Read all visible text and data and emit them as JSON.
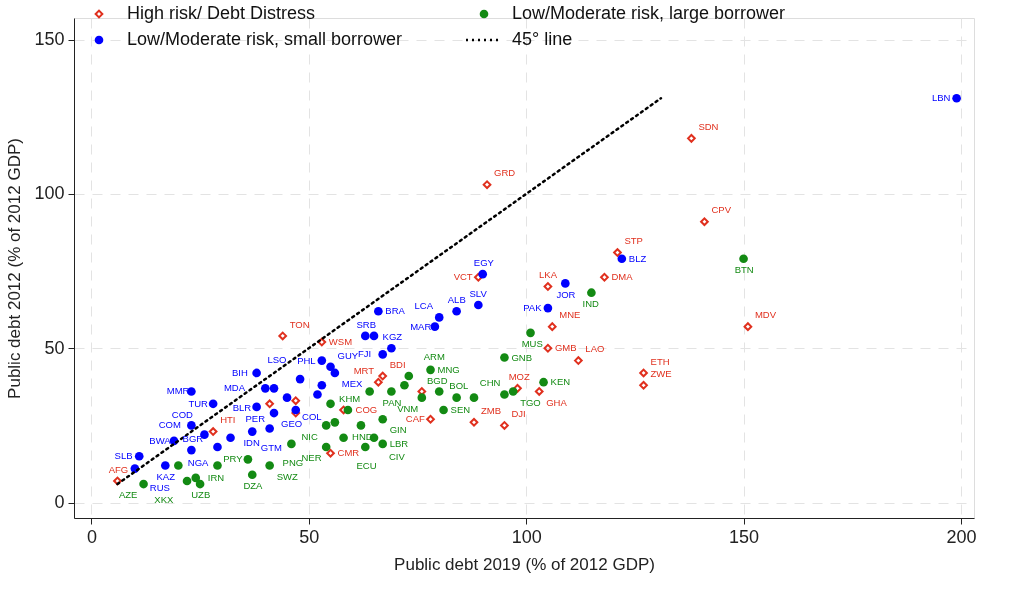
{
  "chart_data": {
    "type": "scatter",
    "xlabel": "Public debt 2019 (% of 2012 GDP)",
    "ylabel": "Public debt 2012 (% of 2012 GDP)",
    "xlim": [
      -4,
      203
    ],
    "ylim": [
      -5,
      157
    ],
    "xticks": [
      0,
      50,
      100,
      150,
      200
    ],
    "yticks": [
      0,
      50,
      100,
      150
    ],
    "grid": true,
    "legend": "top",
    "series": [
      {
        "name": "High risk/ Debt Distress",
        "color": "#e0301e",
        "marker": "diamond",
        "x": [
          6,
          44,
          53,
          28,
          91,
          89,
          138,
          141,
          121,
          118,
          105,
          106,
          105,
          112,
          127,
          127,
          151,
          98,
          103,
          88,
          95,
          78,
          76,
          67,
          66,
          55,
          58,
          41,
          47,
          47
        ],
        "values": [
          7,
          54,
          52,
          23,
          103,
          73,
          118,
          91,
          81,
          73,
          70,
          57,
          50,
          46,
          42,
          38,
          57,
          37,
          36,
          26,
          25,
          27,
          36,
          41,
          39,
          16,
          30,
          32,
          29,
          33
        ]
      },
      {
        "name": "Low/Moderate risk, small borrower",
        "color": "#0000ff",
        "marker": "circle",
        "x": [
          199,
          122,
          109,
          105,
          90,
          89,
          84,
          80,
          79,
          66,
          63,
          65,
          69,
          67,
          53,
          55,
          56,
          38,
          23,
          28,
          38,
          42,
          40,
          48,
          42,
          53,
          45,
          52,
          47,
          26,
          32,
          37,
          41,
          23,
          19,
          29,
          23,
          17,
          11,
          10
        ],
        "values": [
          131,
          79,
          71,
          63,
          74,
          64,
          62,
          60,
          57,
          62,
          54,
          54,
          50,
          48,
          46,
          44,
          42,
          42,
          36,
          32,
          31,
          29,
          37,
          40,
          37,
          38,
          34,
          35,
          30,
          22,
          21,
          23,
          24,
          25,
          20,
          18,
          17,
          12,
          15,
          11
        ]
      },
      {
        "name": "Low/Moderate risk, large borrower",
        "color": "#138a13",
        "marker": "circle",
        "x": [
          150,
          115,
          101,
          95,
          104,
          97,
          95,
          88,
          84,
          81,
          80,
          78,
          76,
          73,
          72,
          69,
          67,
          59,
          62,
          65,
          67,
          63,
          54,
          54,
          46,
          25,
          24,
          22,
          12,
          37,
          41,
          36,
          29,
          20,
          64,
          55,
          56,
          58
        ],
        "values": [
          79,
          68,
          55,
          47,
          39,
          36,
          35,
          34,
          34,
          30,
          36,
          43,
          34,
          41,
          38,
          36,
          27,
          30,
          25,
          21,
          19,
          18,
          25,
          18,
          19,
          6,
          8,
          7,
          6,
          9,
          12,
          14,
          12,
          12,
          36,
          32,
          26,
          21
        ]
      },
      {
        "name": "45° line",
        "type": "line",
        "color": "#000000",
        "line_style": "dotted",
        "x": [
          6,
          131
        ],
        "values": [
          6,
          131
        ]
      }
    ],
    "annotations": [
      {
        "text": "AFG",
        "x": 6,
        "y": 7
      },
      {
        "text": "TON",
        "x": 44,
        "y": 54
      },
      {
        "text": "WSM",
        "x": 53,
        "y": 52
      },
      {
        "text": "HTI",
        "x": 28,
        "y": 23
      },
      {
        "text": "GRD",
        "x": 91,
        "y": 103
      },
      {
        "text": "VCT",
        "x": 89,
        "y": 73
      },
      {
        "text": "SDN",
        "x": 138,
        "y": 118
      },
      {
        "text": "CPV",
        "x": 141,
        "y": 91
      },
      {
        "text": "STP",
        "x": 121,
        "y": 81
      },
      {
        "text": "DMA",
        "x": 118,
        "y": 73
      },
      {
        "text": "LKA",
        "x": 105,
        "y": 70
      },
      {
        "text": "MNE",
        "x": 106,
        "y": 57
      },
      {
        "text": "GMB",
        "x": 105,
        "y": 50
      },
      {
        "text": "LAO",
        "x": 112,
        "y": 46
      },
      {
        "text": "ETH",
        "x": 127,
        "y": 42
      },
      {
        "text": "ZWE",
        "x": 127,
        "y": 38
      },
      {
        "text": "MDV",
        "x": 151,
        "y": 57
      },
      {
        "text": "MOZ",
        "x": 98,
        "y": 37
      },
      {
        "text": "GHA",
        "x": 103,
        "y": 36
      },
      {
        "text": "ZMB",
        "x": 88,
        "y": 26
      },
      {
        "text": "DJI",
        "x": 95,
        "y": 25
      },
      {
        "text": "CAF",
        "x": 78,
        "y": 27
      },
      {
        "text": "BDI",
        "x": 67,
        "y": 41
      },
      {
        "text": "MRT",
        "x": 66,
        "y": 39
      },
      {
        "text": "CMR",
        "x": 55,
        "y": 16
      },
      {
        "text": "COG",
        "x": 58,
        "y": 30
      },
      {
        "text": "LBN",
        "x": 199,
        "y": 131
      },
      {
        "text": "BLZ",
        "x": 122,
        "y": 79
      },
      {
        "text": "JOR",
        "x": 109,
        "y": 71
      },
      {
        "text": "PAK",
        "x": 105,
        "y": 63
      },
      {
        "text": "EGY",
        "x": 90,
        "y": 74
      },
      {
        "text": "SLV",
        "x": 89,
        "y": 64
      },
      {
        "text": "ALB",
        "x": 84,
        "y": 62
      },
      {
        "text": "LCA",
        "x": 80,
        "y": 60
      },
      {
        "text": "MAR",
        "x": 79,
        "y": 57
      },
      {
        "text": "BRA",
        "x": 66,
        "y": 62
      },
      {
        "text": "SRB",
        "x": 63,
        "y": 54
      },
      {
        "text": "KGZ",
        "x": 69,
        "y": 50
      },
      {
        "text": "FJI",
        "x": 67,
        "y": 48
      },
      {
        "text": "PHL",
        "x": 53,
        "y": 46
      },
      {
        "text": "GUY",
        "x": 55,
        "y": 44
      },
      {
        "text": "MEX",
        "x": 56,
        "y": 42
      },
      {
        "text": "BIH",
        "x": 38,
        "y": 42
      },
      {
        "text": "MMR",
        "x": 23,
        "y": 36
      },
      {
        "text": "TUR",
        "x": 28,
        "y": 32
      },
      {
        "text": "MDA",
        "x": 38,
        "y": 31
      },
      {
        "text": "GEO",
        "x": 42,
        "y": 29
      },
      {
        "text": "BLR",
        "x": 40,
        "y": 37
      },
      {
        "text": "LSO",
        "x": 48,
        "y": 40
      },
      {
        "text": "COL",
        "x": 45,
        "y": 34
      },
      {
        "text": "COD",
        "x": 26,
        "y": 22
      },
      {
        "text": "PER",
        "x": 32,
        "y": 21
      },
      {
        "text": "IDN",
        "x": 37,
        "y": 23
      },
      {
        "text": "GTM",
        "x": 41,
        "y": 24
      },
      {
        "text": "COM",
        "x": 23,
        "y": 25
      },
      {
        "text": "BWA",
        "x": 19,
        "y": 20
      },
      {
        "text": "NGA",
        "x": 29,
        "y": 18
      },
      {
        "text": "BGR",
        "x": 23,
        "y": 17
      },
      {
        "text": "KAZ",
        "x": 17,
        "y": 12
      },
      {
        "text": "SLB",
        "x": 11,
        "y": 15
      },
      {
        "text": "RUS",
        "x": 10,
        "y": 11
      },
      {
        "text": "BTN",
        "x": 150,
        "y": 79
      },
      {
        "text": "IND",
        "x": 115,
        "y": 68
      },
      {
        "text": "MUS",
        "x": 101,
        "y": 55
      },
      {
        "text": "GNB",
        "x": 95,
        "y": 47
      },
      {
        "text": "KEN",
        "x": 104,
        "y": 39
      },
      {
        "text": "TGO",
        "x": 97,
        "y": 36
      },
      {
        "text": "CHN",
        "x": 95,
        "y": 35
      },
      {
        "text": "BOL",
        "x": 88,
        "y": 34
      },
      {
        "text": "BGD",
        "x": 84,
        "y": 34
      },
      {
        "text": "SEN",
        "x": 81,
        "y": 30
      },
      {
        "text": "MNG",
        "x": 78,
        "y": 43
      },
      {
        "text": "VNM",
        "x": 76,
        "y": 34
      },
      {
        "text": "ARM",
        "x": 73,
        "y": 41
      },
      {
        "text": "PAN",
        "x": 69,
        "y": 36
      },
      {
        "text": "GIN",
        "x": 67,
        "y": 27
      },
      {
        "text": "KHM",
        "x": 59,
        "y": 30
      },
      {
        "text": "HND",
        "x": 62,
        "y": 25
      },
      {
        "text": "CIV",
        "x": 65,
        "y": 21
      },
      {
        "text": "LBR",
        "x": 67,
        "y": 19
      },
      {
        "text": "ECU",
        "x": 63,
        "y": 18
      },
      {
        "text": "NIC",
        "x": 54,
        "y": 25
      },
      {
        "text": "NER",
        "x": 54,
        "y": 18
      },
      {
        "text": "PNG",
        "x": 46,
        "y": 19
      },
      {
        "text": "UZB",
        "x": 25,
        "y": 6
      },
      {
        "text": "IRN",
        "x": 24,
        "y": 8
      },
      {
        "text": "XKX",
        "x": 22,
        "y": 7
      },
      {
        "text": "AZE",
        "x": 12,
        "y": 6
      },
      {
        "text": "DZA",
        "x": 37,
        "y": 9
      },
      {
        "text": "SWZ",
        "x": 41,
        "y": 12
      },
      {
        "text": "PRY",
        "x": 36,
        "y": 14
      }
    ]
  }
}
